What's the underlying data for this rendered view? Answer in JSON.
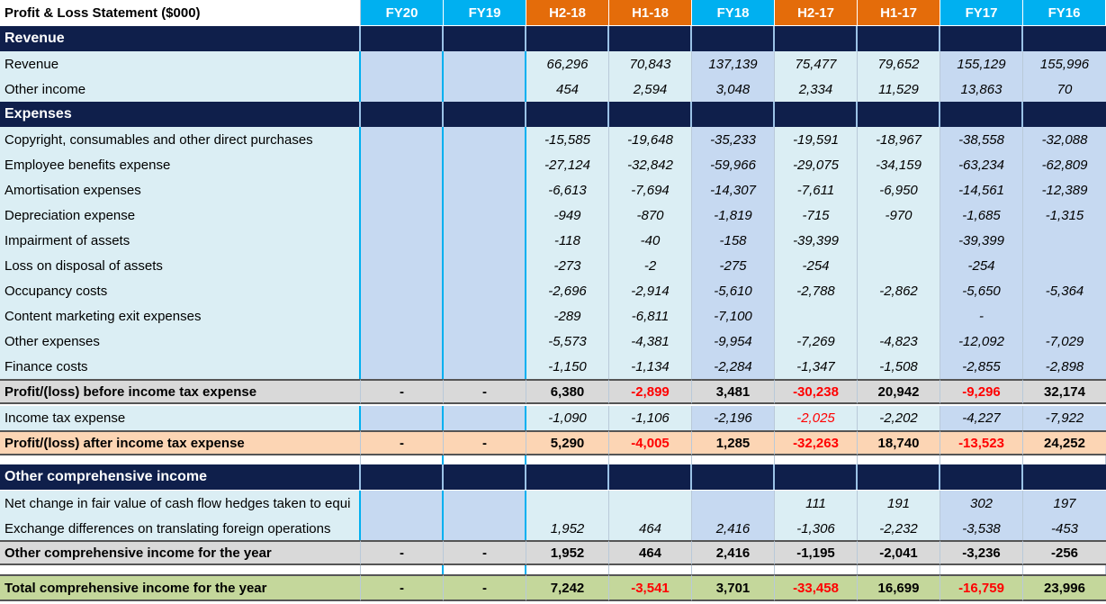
{
  "sheet": {
    "title": "Profit & Loss Statement ($000)",
    "columns": [
      {
        "label": "FY20",
        "tone": "blue"
      },
      {
        "label": "FY19",
        "tone": "blue"
      },
      {
        "label": "H2-18",
        "tone": "orange"
      },
      {
        "label": "H1-18",
        "tone": "orange"
      },
      {
        "label": "FY18",
        "tone": "blue"
      },
      {
        "label": "H2-17",
        "tone": "orange"
      },
      {
        "label": "H1-17",
        "tone": "orange"
      },
      {
        "label": "FY17",
        "tone": "blue"
      },
      {
        "label": "FY16",
        "tone": "blue"
      }
    ],
    "rows": [
      {
        "kind": "section",
        "label": "Revenue"
      },
      {
        "kind": "data",
        "label": "Revenue",
        "values": [
          "",
          "",
          "66,296",
          "70,843",
          "137,139",
          "75,477",
          "79,652",
          "155,129",
          "155,996"
        ]
      },
      {
        "kind": "data",
        "label": "Other income",
        "values": [
          "",
          "",
          "454",
          "2,594",
          "3,048",
          "2,334",
          "11,529",
          "13,863",
          "70"
        ]
      },
      {
        "kind": "section",
        "label": "Expenses"
      },
      {
        "kind": "data",
        "label": "Copyright, consumables and other direct purchases",
        "values": [
          "",
          "",
          "-15,585",
          "-19,648",
          "-35,233",
          "-19,591",
          "-18,967",
          "-38,558",
          "-32,088"
        ]
      },
      {
        "kind": "data",
        "label": "Employee benefits expense",
        "values": [
          "",
          "",
          "-27,124",
          "-32,842",
          "-59,966",
          "-29,075",
          "-34,159",
          "-63,234",
          "-62,809"
        ]
      },
      {
        "kind": "data",
        "label": "Amortisation expenses",
        "values": [
          "",
          "",
          "-6,613",
          "-7,694",
          "-14,307",
          "-7,611",
          "-6,950",
          "-14,561",
          "-12,389"
        ]
      },
      {
        "kind": "data",
        "label": "Depreciation expense",
        "values": [
          "",
          "",
          "-949",
          "-870",
          "-1,819",
          "-715",
          "-970",
          "-1,685",
          "-1,315"
        ]
      },
      {
        "kind": "data",
        "label": "Impairment of assets",
        "values": [
          "",
          "",
          "-118",
          "-40",
          "-158",
          "-39,399",
          "",
          "-39,399",
          ""
        ]
      },
      {
        "kind": "data",
        "label": "Loss on disposal of assets",
        "values": [
          "",
          "",
          "-273",
          "-2",
          "-275",
          "-254",
          "",
          "-254",
          ""
        ]
      },
      {
        "kind": "data",
        "label": "Occupancy costs",
        "values": [
          "",
          "",
          "-2,696",
          "-2,914",
          "-5,610",
          "-2,788",
          "-2,862",
          "-5,650",
          "-5,364"
        ]
      },
      {
        "kind": "data",
        "label": "Content marketing exit expenses",
        "values": [
          "",
          "",
          "-289",
          "-6,811",
          "-7,100",
          "",
          "",
          "-",
          ""
        ]
      },
      {
        "kind": "data",
        "label": "Other expenses",
        "values": [
          "",
          "",
          "-5,573",
          "-4,381",
          "-9,954",
          "-7,269",
          "-4,823",
          "-12,092",
          "-7,029"
        ]
      },
      {
        "kind": "data",
        "label": "Finance costs",
        "values": [
          "",
          "",
          "-1,150",
          "-1,134",
          "-2,284",
          "-1,347",
          "-1,508",
          "-2,855",
          "-2,898"
        ]
      },
      {
        "kind": "total",
        "style": "grey",
        "label": "Profit/(loss) before income tax expense",
        "values": [
          "-",
          "-",
          "6,380",
          "-2,899",
          "3,481",
          "-30,238",
          "20,942",
          "-9,296",
          "32,174"
        ],
        "red": [
          3,
          5,
          7
        ]
      },
      {
        "kind": "data",
        "label": "Income tax expense",
        "values": [
          "",
          "",
          "-1,090",
          "-1,106",
          "-2,196",
          "-2,025",
          "-2,202",
          "-4,227",
          "-7,922"
        ],
        "red": [
          5
        ]
      },
      {
        "kind": "total",
        "style": "peach",
        "label": "Profit/(loss) after income tax expense",
        "values": [
          "-",
          "-",
          "5,290",
          "-4,005",
          "1,285",
          "-32,263",
          "18,740",
          "-13,523",
          "24,252"
        ],
        "red": [
          3,
          5,
          7
        ]
      },
      {
        "kind": "blank"
      },
      {
        "kind": "section",
        "label": "Other comprehensive income"
      },
      {
        "kind": "data",
        "label": "Net change in fair value of cash flow hedges taken to equi",
        "values": [
          "",
          "",
          "",
          "",
          "",
          "111",
          "191",
          "302",
          "197"
        ]
      },
      {
        "kind": "data",
        "label": "Exchange differences on translating foreign operations",
        "values": [
          "",
          "",
          "1,952",
          "464",
          "2,416",
          "-1,306",
          "-2,232",
          "-3,538",
          "-453"
        ]
      },
      {
        "kind": "total",
        "style": "grey",
        "label": "Other comprehensive income for the year",
        "values": [
          "-",
          "-",
          "1,952",
          "464",
          "2,416",
          "-1,195",
          "-2,041",
          "-3,236",
          "-256"
        ]
      },
      {
        "kind": "blank"
      },
      {
        "kind": "total",
        "style": "green",
        "label": "Total comprehensive income for the year",
        "values": [
          "-",
          "-",
          "7,242",
          "-3,541",
          "3,701",
          "-33,458",
          "16,699",
          "-16,759",
          "23,996"
        ],
        "red": [
          3,
          5,
          7
        ]
      }
    ]
  }
}
